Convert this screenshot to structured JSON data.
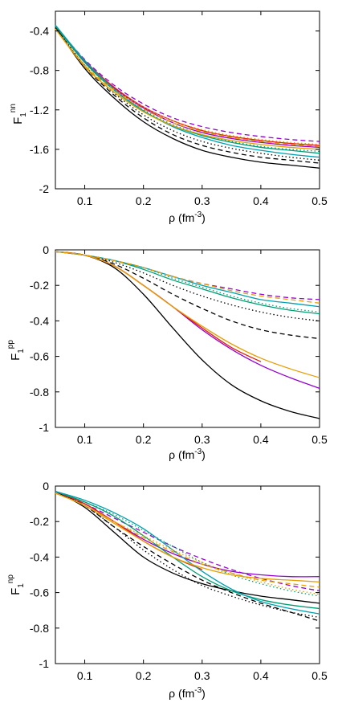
{
  "chart_data": [
    {
      "type": "line",
      "panel": "top",
      "ylabel": {
        "base": "F",
        "sub": "1",
        "sup": "nn"
      },
      "xlabel": {
        "base": "ρ (fm",
        "sup": "-3",
        "tail": ")"
      },
      "xlim": [
        0.05,
        0.5
      ],
      "ylim": [
        -2.0,
        -0.2
      ],
      "xticks": [
        0.1,
        0.2,
        0.3,
        0.4,
        0.5
      ],
      "xtick_labels": [
        "0.1",
        "0.2",
        "0.3",
        "0.4",
        "0.5"
      ],
      "yticks": [
        -2.0,
        -1.6,
        -1.2,
        -0.8,
        -0.4
      ],
      "ytick_labels": [
        "-2",
        "-1.6",
        "-1.2",
        "-0.8",
        "-0.4"
      ],
      "grid": false,
      "series": [
        {
          "color": "#000000",
          "dash": "solid",
          "x": [
            0.05,
            0.1,
            0.15,
            0.2,
            0.25,
            0.3,
            0.35,
            0.4,
            0.45,
            0.5
          ],
          "y": [
            -0.36,
            -0.78,
            -1.08,
            -1.32,
            -1.49,
            -1.61,
            -1.68,
            -1.73,
            -1.76,
            -1.79
          ]
        },
        {
          "color": "#000000",
          "dash": "dashed",
          "x": [
            0.05,
            0.1,
            0.15,
            0.2,
            0.25,
            0.3,
            0.35,
            0.4,
            0.45,
            0.5
          ],
          "y": [
            -0.36,
            -0.76,
            -1.05,
            -1.28,
            -1.45,
            -1.56,
            -1.63,
            -1.68,
            -1.71,
            -1.74
          ]
        },
        {
          "color": "#000000",
          "dash": "dotted",
          "x": [
            0.05,
            0.1,
            0.15,
            0.2,
            0.25,
            0.3,
            0.35,
            0.4,
            0.45,
            0.5
          ],
          "y": [
            -0.36,
            -0.75,
            -1.03,
            -1.25,
            -1.41,
            -1.52,
            -1.59,
            -1.64,
            -1.68,
            -1.71
          ]
        },
        {
          "color": "#9400d3",
          "dash": "solid",
          "x": [
            0.05,
            0.1,
            0.15,
            0.2,
            0.25,
            0.3,
            0.35,
            0.4,
            0.45,
            0.5
          ],
          "y": [
            -0.35,
            -0.71,
            -0.98,
            -1.18,
            -1.33,
            -1.43,
            -1.49,
            -1.53,
            -1.56,
            -1.58
          ]
        },
        {
          "color": "#9400d3",
          "dash": "dashed",
          "x": [
            0.05,
            0.1,
            0.15,
            0.2,
            0.25,
            0.3,
            0.35,
            0.4,
            0.45,
            0.5
          ],
          "y": [
            -0.35,
            -0.69,
            -0.95,
            -1.14,
            -1.28,
            -1.37,
            -1.43,
            -1.47,
            -1.5,
            -1.52
          ]
        },
        {
          "color": "#e51e10",
          "dash": "solid",
          "x": [
            0.05,
            0.1,
            0.15,
            0.2,
            0.25,
            0.3,
            0.35,
            0.4,
            0.45,
            0.5
          ],
          "y": [
            -0.35,
            -0.7,
            -0.97,
            -1.17,
            -1.31,
            -1.41,
            -1.47,
            -1.51,
            -1.54,
            -1.56
          ]
        },
        {
          "color": "#009e73",
          "dash": "solid",
          "x": [
            0.05,
            0.1,
            0.15,
            0.2,
            0.25,
            0.3,
            0.35,
            0.4,
            0.45,
            0.5
          ],
          "y": [
            -0.35,
            -0.72,
            -1.0,
            -1.21,
            -1.36,
            -1.46,
            -1.53,
            -1.58,
            -1.61,
            -1.64
          ]
        },
        {
          "color": "#009e73",
          "dash": "dotted",
          "x": [
            0.05,
            0.1,
            0.15,
            0.2,
            0.25,
            0.3,
            0.35,
            0.4,
            0.45,
            0.5
          ],
          "y": [
            -0.35,
            -0.72,
            -0.99,
            -1.2,
            -1.35,
            -1.45,
            -1.52,
            -1.57,
            -1.6,
            -1.62
          ]
        },
        {
          "color": "#00a0b0",
          "dash": "solid",
          "x": [
            0.05,
            0.1,
            0.15,
            0.2,
            0.25,
            0.3,
            0.35,
            0.4,
            0.45,
            0.5
          ],
          "y": [
            -0.34,
            -0.7,
            -0.99,
            -1.21,
            -1.37,
            -1.48,
            -1.56,
            -1.61,
            -1.65,
            -1.68
          ]
        },
        {
          "color": "#e69f00",
          "dash": "solid",
          "x": [
            0.05,
            0.1,
            0.15,
            0.2,
            0.25,
            0.3,
            0.35,
            0.4,
            0.45,
            0.5
          ],
          "y": [
            -0.38,
            -0.76,
            -1.02,
            -1.22,
            -1.36,
            -1.45,
            -1.51,
            -1.55,
            -1.58,
            -1.6
          ]
        },
        {
          "color": "#e69f00",
          "dash": "dashed",
          "x": [
            0.05,
            0.1,
            0.15,
            0.2,
            0.25,
            0.3,
            0.35,
            0.4,
            0.45,
            0.5
          ],
          "y": [
            -0.38,
            -0.75,
            -1.0,
            -1.19,
            -1.33,
            -1.42,
            -1.48,
            -1.52,
            -1.55,
            -1.57
          ]
        },
        {
          "color": "#e69f00",
          "dash": "dotted",
          "x": [
            0.05,
            0.1,
            0.15,
            0.2,
            0.25,
            0.3,
            0.35,
            0.4,
            0.45,
            0.5
          ],
          "y": [
            -0.38,
            -0.74,
            -0.99,
            -1.17,
            -1.31,
            -1.4,
            -1.46,
            -1.5,
            -1.53,
            -1.55
          ]
        }
      ]
    },
    {
      "type": "line",
      "panel": "middle",
      "ylabel": {
        "base": "F",
        "sub": "1",
        "sup": "pp"
      },
      "xlabel": {
        "base": "ρ (fm",
        "sup": "-3",
        "tail": ")"
      },
      "xlim": [
        0.05,
        0.5
      ],
      "ylim": [
        -1.0,
        0.0
      ],
      "xticks": [
        0.1,
        0.2,
        0.3,
        0.4,
        0.5
      ],
      "xtick_labels": [
        "0.1",
        "0.2",
        "0.3",
        "0.4",
        "0.5"
      ],
      "yticks": [
        -1.0,
        -0.8,
        -0.6,
        -0.4,
        -0.2,
        0.0
      ],
      "ytick_labels": [
        "-1",
        "-0.8",
        "-0.6",
        "-0.4",
        "-0.2",
        "0"
      ],
      "grid": false,
      "series": [
        {
          "color": "#000000",
          "dash": "solid",
          "x": [
            0.05,
            0.1,
            0.15,
            0.2,
            0.25,
            0.3,
            0.35,
            0.4,
            0.45,
            0.5
          ],
          "y": [
            -0.01,
            -0.03,
            -0.1,
            -0.25,
            -0.44,
            -0.62,
            -0.76,
            -0.85,
            -0.91,
            -0.95
          ]
        },
        {
          "color": "#000000",
          "dash": "dashed",
          "x": [
            0.05,
            0.1,
            0.15,
            0.2,
            0.25,
            0.3,
            0.35,
            0.4,
            0.45,
            0.5
          ],
          "y": [
            -0.01,
            -0.03,
            -0.08,
            -0.16,
            -0.25,
            -0.33,
            -0.4,
            -0.45,
            -0.48,
            -0.5
          ]
        },
        {
          "color": "#000000",
          "dash": "dotted",
          "x": [
            0.05,
            0.1,
            0.15,
            0.2,
            0.25,
            0.3,
            0.35,
            0.4,
            0.45,
            0.5
          ],
          "y": [
            -0.01,
            -0.03,
            -0.07,
            -0.13,
            -0.2,
            -0.26,
            -0.31,
            -0.35,
            -0.38,
            -0.4
          ]
        },
        {
          "color": "#9400d3",
          "dash": "solid",
          "x": [
            0.05,
            0.1,
            0.15,
            0.2,
            0.25,
            0.3,
            0.35,
            0.4,
            0.45,
            0.5
          ],
          "y": [
            -0.01,
            -0.03,
            -0.09,
            -0.2,
            -0.32,
            -0.45,
            -0.56,
            -0.65,
            -0.72,
            -0.78
          ]
        },
        {
          "color": "#9400d3",
          "dash": "dashed",
          "x": [
            0.05,
            0.1,
            0.15,
            0.2,
            0.25,
            0.3,
            0.35,
            0.4,
            0.45,
            0.5
          ],
          "y": [
            -0.01,
            -0.03,
            -0.06,
            -0.1,
            -0.15,
            -0.19,
            -0.22,
            -0.25,
            -0.27,
            -0.28
          ]
        },
        {
          "color": "#e51e10",
          "dash": "solid",
          "x": [
            0.05,
            0.1,
            0.15,
            0.2,
            0.25,
            0.3,
            0.35,
            0.4
          ],
          "y": [
            -0.01,
            -0.03,
            -0.09,
            -0.2,
            -0.32,
            -0.44,
            -0.55,
            -0.63
          ]
        },
        {
          "color": "#009e73",
          "dash": "solid",
          "x": [
            0.05,
            0.1,
            0.15,
            0.2,
            0.25,
            0.3,
            0.35,
            0.4,
            0.45,
            0.5
          ],
          "y": [
            -0.01,
            -0.03,
            -0.06,
            -0.11,
            -0.17,
            -0.22,
            -0.27,
            -0.31,
            -0.34,
            -0.36
          ]
        },
        {
          "color": "#009e73",
          "dash": "dotted",
          "x": [
            0.05,
            0.1,
            0.15,
            0.2,
            0.25,
            0.3,
            0.35,
            0.4,
            0.45,
            0.5
          ],
          "y": [
            -0.01,
            -0.03,
            -0.06,
            -0.1,
            -0.16,
            -0.21,
            -0.26,
            -0.3,
            -0.33,
            -0.35
          ]
        },
        {
          "color": "#00a0b0",
          "dash": "solid",
          "x": [
            0.05,
            0.1,
            0.15,
            0.2,
            0.25,
            0.3,
            0.35,
            0.4,
            0.45,
            0.5
          ],
          "y": [
            -0.01,
            -0.03,
            -0.06,
            -0.1,
            -0.15,
            -0.2,
            -0.24,
            -0.28,
            -0.3,
            -0.32
          ]
        },
        {
          "color": "#e69f00",
          "dash": "solid",
          "x": [
            0.05,
            0.1,
            0.15,
            0.2,
            0.25,
            0.3,
            0.35,
            0.4,
            0.45,
            0.5
          ],
          "y": [
            -0.01,
            -0.03,
            -0.09,
            -0.2,
            -0.32,
            -0.43,
            -0.53,
            -0.61,
            -0.67,
            -0.72
          ]
        },
        {
          "color": "#e69f00",
          "dash": "dashed",
          "x": [
            0.05,
            0.1,
            0.15,
            0.2,
            0.25,
            0.3,
            0.35,
            0.4,
            0.45,
            0.5
          ],
          "y": [
            -0.01,
            -0.03,
            -0.06,
            -0.1,
            -0.15,
            -0.19,
            -0.23,
            -0.26,
            -0.28,
            -0.3
          ]
        }
      ]
    },
    {
      "type": "line",
      "panel": "bottom",
      "ylabel": {
        "base": "F",
        "sub": "1",
        "sup": "np"
      },
      "xlabel": {
        "base": "ρ (fm",
        "sup": "-3",
        "tail": ")"
      },
      "xlim": [
        0.05,
        0.5
      ],
      "ylim": [
        -1.0,
        0.0
      ],
      "xticks": [
        0.1,
        0.2,
        0.3,
        0.4,
        0.5
      ],
      "xtick_labels": [
        "0.1",
        "0.2",
        "0.3",
        "0.4",
        "0.5"
      ],
      "yticks": [
        -1.0,
        -0.8,
        -0.6,
        -0.4,
        -0.2,
        0.0
      ],
      "ytick_labels": [
        "-1",
        "-0.8",
        "-0.6",
        "-0.4",
        "-0.2",
        "0"
      ],
      "grid": false,
      "series": [
        {
          "color": "#000000",
          "dash": "solid",
          "x": [
            0.05,
            0.1,
            0.15,
            0.2,
            0.25,
            0.3,
            0.35,
            0.4,
            0.45,
            0.5
          ],
          "y": [
            -0.03,
            -0.12,
            -0.26,
            -0.4,
            -0.49,
            -0.55,
            -0.59,
            -0.62,
            -0.64,
            -0.66
          ]
        },
        {
          "color": "#000000",
          "dash": "dashed",
          "x": [
            0.05,
            0.1,
            0.15,
            0.2,
            0.25,
            0.3,
            0.35,
            0.4,
            0.45,
            0.5
          ],
          "y": [
            -0.03,
            -0.11,
            -0.23,
            -0.34,
            -0.44,
            -0.53,
            -0.6,
            -0.66,
            -0.71,
            -0.76
          ]
        },
        {
          "color": "#000000",
          "dash": "dotted",
          "x": [
            0.05,
            0.1,
            0.15,
            0.2,
            0.25,
            0.3,
            0.35,
            0.4,
            0.45,
            0.5
          ],
          "y": [
            -0.03,
            -0.11,
            -0.23,
            -0.36,
            -0.47,
            -0.56,
            -0.62,
            -0.67,
            -0.71,
            -0.74
          ]
        },
        {
          "color": "#9400d3",
          "dash": "solid",
          "x": [
            0.05,
            0.1,
            0.15,
            0.2,
            0.25,
            0.3,
            0.35,
            0.4,
            0.45,
            0.5
          ],
          "y": [
            -0.03,
            -0.1,
            -0.2,
            -0.3,
            -0.38,
            -0.44,
            -0.48,
            -0.5,
            -0.51,
            -0.51
          ]
        },
        {
          "color": "#9400d3",
          "dash": "dashed",
          "x": [
            0.05,
            0.1,
            0.15,
            0.2,
            0.25,
            0.3,
            0.35,
            0.4,
            0.45,
            0.5
          ],
          "y": [
            -0.03,
            -0.1,
            -0.18,
            -0.26,
            -0.34,
            -0.41,
            -0.47,
            -0.52,
            -0.56,
            -0.59
          ]
        },
        {
          "color": "#e51e10",
          "dash": "solid",
          "x": [
            0.05,
            0.1,
            0.15,
            0.2,
            0.25,
            0.3
          ],
          "y": [
            -0.03,
            -0.1,
            -0.2,
            -0.31,
            -0.4,
            -0.47
          ]
        },
        {
          "color": "#009e73",
          "dash": "solid",
          "x": [
            0.05,
            0.1,
            0.15,
            0.2,
            0.25,
            0.3,
            0.35,
            0.4,
            0.45,
            0.5
          ],
          "y": [
            -0.03,
            -0.09,
            -0.17,
            -0.28,
            -0.4,
            -0.51,
            -0.59,
            -0.64,
            -0.67,
            -0.69
          ]
        },
        {
          "color": "#009e73",
          "dash": "dotted",
          "x": [
            0.05,
            0.1,
            0.15,
            0.2,
            0.25,
            0.3,
            0.35,
            0.4,
            0.45,
            0.5
          ],
          "y": [
            -0.03,
            -0.09,
            -0.16,
            -0.25,
            -0.34,
            -0.43,
            -0.5,
            -0.55,
            -0.59,
            -0.62
          ]
        },
        {
          "color": "#00a0b0",
          "dash": "solid",
          "x": [
            0.05,
            0.1,
            0.15,
            0.2,
            0.25,
            0.3,
            0.35,
            0.4,
            0.45,
            0.5
          ],
          "y": [
            -0.03,
            -0.08,
            -0.15,
            -0.24,
            -0.36,
            -0.48,
            -0.58,
            -0.65,
            -0.69,
            -0.72
          ]
        },
        {
          "color": "#e69f00",
          "dash": "solid",
          "x": [
            0.05,
            0.1,
            0.15,
            0.2,
            0.25,
            0.3,
            0.35,
            0.4,
            0.45,
            0.5
          ],
          "y": [
            -0.04,
            -0.11,
            -0.21,
            -0.31,
            -0.4,
            -0.46,
            -0.5,
            -0.52,
            -0.53,
            -0.54
          ]
        },
        {
          "color": "#e69f00",
          "dash": "dashed",
          "x": [
            0.05,
            0.1,
            0.15,
            0.2,
            0.25,
            0.3,
            0.35,
            0.4,
            0.45,
            0.5
          ],
          "y": [
            -0.04,
            -0.11,
            -0.2,
            -0.29,
            -0.37,
            -0.44,
            -0.49,
            -0.53,
            -0.55,
            -0.57
          ]
        },
        {
          "color": "#e69f00",
          "dash": "dotted",
          "x": [
            0.05,
            0.1,
            0.15,
            0.2,
            0.25,
            0.3,
            0.35,
            0.4,
            0.45,
            0.5
          ],
          "y": [
            -0.04,
            -0.11,
            -0.2,
            -0.28,
            -0.36,
            -0.43,
            -0.49,
            -0.54,
            -0.58,
            -0.61
          ]
        }
      ]
    }
  ]
}
